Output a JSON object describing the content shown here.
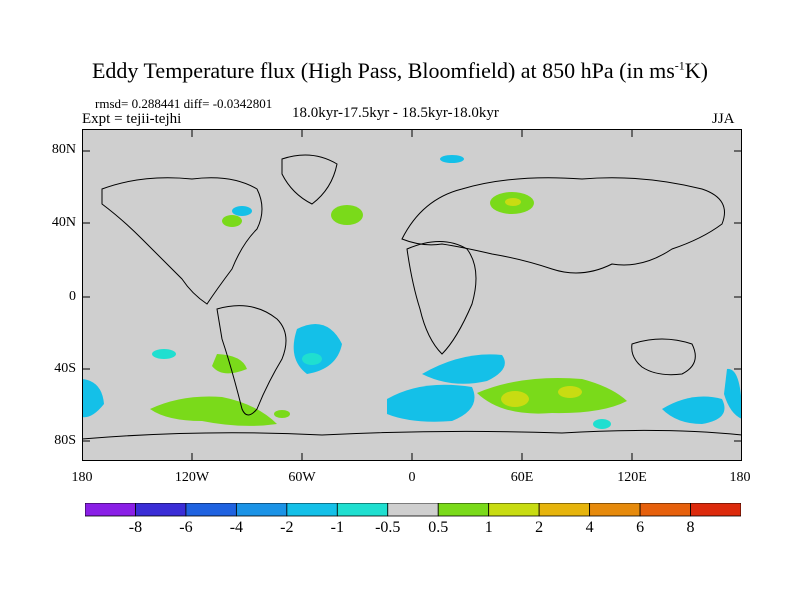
{
  "title": {
    "main": "Eddy Temperature flux (High Pass, Bloomfield) at 850 hPa (in ms",
    "sup": "-1",
    "end": "K)"
  },
  "stats": "rmsd= 0.288441 diff= -0.0342801",
  "expt": "Expt = tejii-tejhi",
  "period": "18.0kyr-17.5kyr - 18.5kyr-18.0kyr",
  "season": "JJA",
  "y_ticks": [
    "80N",
    "40N",
    "0",
    "40S",
    "80S"
  ],
  "x_ticks": [
    "180",
    "120W",
    "60W",
    "0",
    "60E",
    "120E",
    "180"
  ],
  "colorbar": {
    "labels": [
      "-8",
      "-6",
      "-4",
      "-2",
      "-1",
      "-0.5",
      "0.5",
      "1",
      "2",
      "4",
      "6",
      "8"
    ],
    "colors": [
      "#8a1fe6",
      "#3a2dd6",
      "#1f62e0",
      "#1b93e6",
      "#14c0e8",
      "#1fdfd0",
      "#cfcfcf",
      "#7ada1a",
      "#c8dc12",
      "#e6b40c",
      "#e68a0c",
      "#e6600c",
      "#dc2a0c"
    ]
  },
  "colors": {
    "land_sea_background": "#cfcfcf",
    "neg_small": "#14c0e8",
    "neg_small2": "#1fdfd0",
    "pos_small": "#7ada1a",
    "pos_mid": "#c8dc12"
  }
}
